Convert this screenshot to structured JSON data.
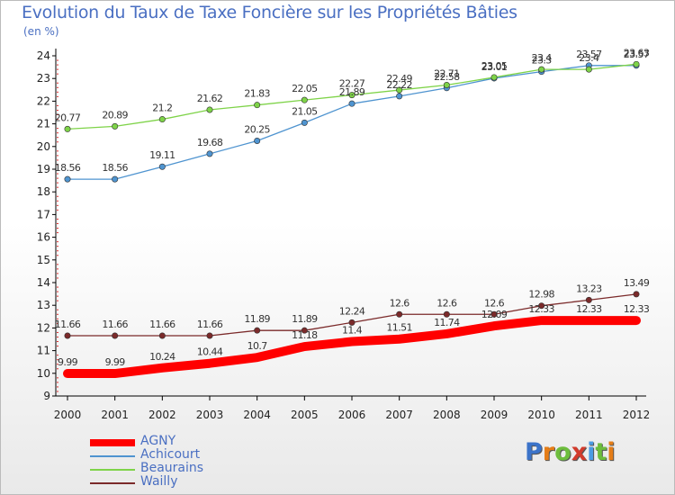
{
  "chart_data": {
    "type": "line",
    "title": "Evolution du Taux de Taxe Foncière sur les Propriétés Bâties",
    "ylabel": "(en %)",
    "xlabel": "",
    "x": [
      "2000",
      "2001",
      "2002",
      "2003",
      "2004",
      "2005",
      "2006",
      "2007",
      "2008",
      "2009",
      "2010",
      "2011",
      "2012"
    ],
    "ylim": [
      9,
      24
    ],
    "yticks": [
      "9",
      "10",
      "11",
      "12",
      "13",
      "14",
      "15",
      "16",
      "17",
      "18",
      "19",
      "20",
      "21",
      "22",
      "23",
      "24"
    ],
    "grid": false,
    "legend_position": "bottom-left",
    "series": [
      {
        "name": "AGNY",
        "color": "#ff0000",
        "values": [
          9.99,
          9.99,
          10.24,
          10.44,
          10.7,
          11.18,
          11.4,
          11.51,
          11.74,
          12.09,
          12.33,
          12.33,
          12.33
        ],
        "labels": [
          "9.99",
          "9.99",
          "10.24",
          "10.44",
          "10.7",
          "11.18",
          "11.4",
          "11.51",
          "11.74",
          "12.09",
          "12.33",
          "12.33",
          "12.33"
        ]
      },
      {
        "name": "Achicourt",
        "color": "#4f94d0",
        "values": [
          18.56,
          18.56,
          19.11,
          19.68,
          20.25,
          21.05,
          21.89,
          22.22,
          22.58,
          23.01,
          23.3,
          23.57,
          23.57
        ],
        "labels": [
          "18.56",
          "18.56",
          "19.11",
          "19.68",
          "20.25",
          "21.05",
          "21.89",
          "22.22",
          "22.58",
          "23.01",
          "23.3",
          "23.57",
          "23.57"
        ]
      },
      {
        "name": "Beaurains",
        "color": "#7ed348",
        "values": [
          20.77,
          20.89,
          21.2,
          21.62,
          21.83,
          22.05,
          22.27,
          22.49,
          22.71,
          23.05,
          23.4,
          23.4,
          23.63
        ],
        "labels": [
          "20.77",
          "20.89",
          "21.2",
          "21.62",
          "21.83",
          "22.05",
          "22.27",
          "22.49",
          "22.71",
          "23.05",
          "23.4",
          "23.4",
          "23.63"
        ]
      },
      {
        "name": "Wailly",
        "color": "#7b2a2a",
        "values": [
          11.66,
          11.66,
          11.66,
          11.66,
          11.89,
          11.89,
          12.24,
          12.6,
          12.6,
          12.6,
          12.98,
          13.23,
          13.49
        ],
        "labels": [
          "11.66",
          "11.66",
          "11.66",
          "11.66",
          "11.89",
          "11.89",
          "12.24",
          "12.6",
          "12.6",
          "12.6",
          "12.98",
          "13.23",
          "13.49"
        ]
      }
    ]
  },
  "brand": {
    "letters": [
      "P",
      "r",
      "o",
      "x",
      "i",
      "t",
      "i"
    ],
    "colors": [
      "#3b73c9",
      "#e57d17",
      "#6dbd3d",
      "#d23b2c",
      "#4a9be3",
      "#6dbd3d",
      "#e57d17"
    ]
  }
}
